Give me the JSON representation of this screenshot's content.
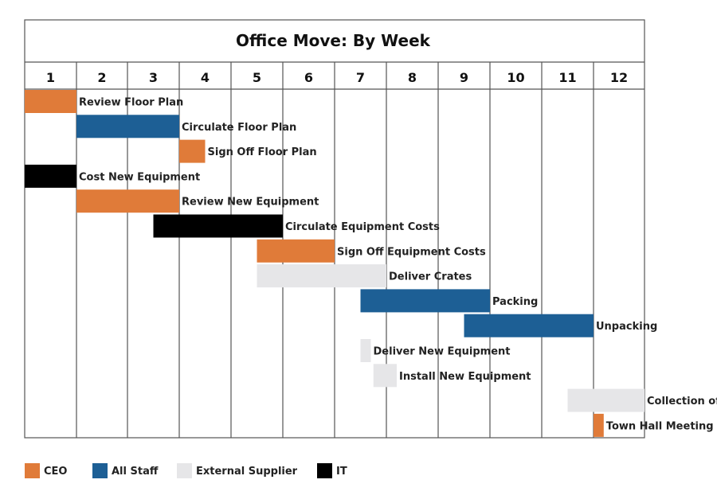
{
  "chart_data": {
    "type": "gantt",
    "title": "Office Move: By Week",
    "x_unit": "week",
    "xlim": [
      1,
      12
    ],
    "weeks": [
      "1",
      "2",
      "3",
      "4",
      "5",
      "6",
      "7",
      "8",
      "9",
      "10",
      "11",
      "12"
    ],
    "tasks": [
      {
        "label": "Review Floor Plan",
        "start": 1,
        "end": 1,
        "owner": "CEO"
      },
      {
        "label": "Circulate Floor Plan",
        "start": 2,
        "end": 3,
        "owner": "All Staff"
      },
      {
        "label": "Sign Off Floor Plan",
        "start": 4,
        "end": 4.5,
        "owner": "CEO"
      },
      {
        "label": "Cost New Equipment",
        "start": 1,
        "end": 1,
        "owner": "IT"
      },
      {
        "label": "Review New Equipment",
        "start": 2,
        "end": 3,
        "owner": "CEO"
      },
      {
        "label": "Circulate Equipment Costs",
        "start": 3.5,
        "end": 5,
        "owner": "IT"
      },
      {
        "label": "Sign Off Equipment Costs",
        "start": 5.5,
        "end": 6,
        "owner": "CEO"
      },
      {
        "label": "Deliver Crates",
        "start": 5.5,
        "end": 7,
        "owner": "External Supplier"
      },
      {
        "label": "Packing",
        "start": 7.5,
        "end": 9,
        "owner": "All Staff"
      },
      {
        "label": "Unpacking",
        "start": 9.5,
        "end": 11,
        "owner": "All Staff"
      },
      {
        "label": "Deliver New Equipment",
        "start": 7.5,
        "end": 7.7,
        "owner": "External Supplier"
      },
      {
        "label": "Install New Equipment",
        "start": 7.75,
        "end": 8.2,
        "owner": "External Supplier"
      },
      {
        "label": "Collection of Crates",
        "start": 11.5,
        "end": 12,
        "owner": "External Supplier"
      },
      {
        "label": "Town Hall Meeting",
        "start": 12,
        "end": 12.2,
        "owner": "CEO"
      }
    ],
    "legend": [
      {
        "label": "CEO",
        "color": "#E07B39"
      },
      {
        "label": "All Staff",
        "color": "#1D5F95"
      },
      {
        "label": "External Supplier",
        "color": "#E6E6E8"
      },
      {
        "label": "IT",
        "color": "#000000"
      }
    ],
    "legend_position": "bottom-left",
    "grid": true
  }
}
